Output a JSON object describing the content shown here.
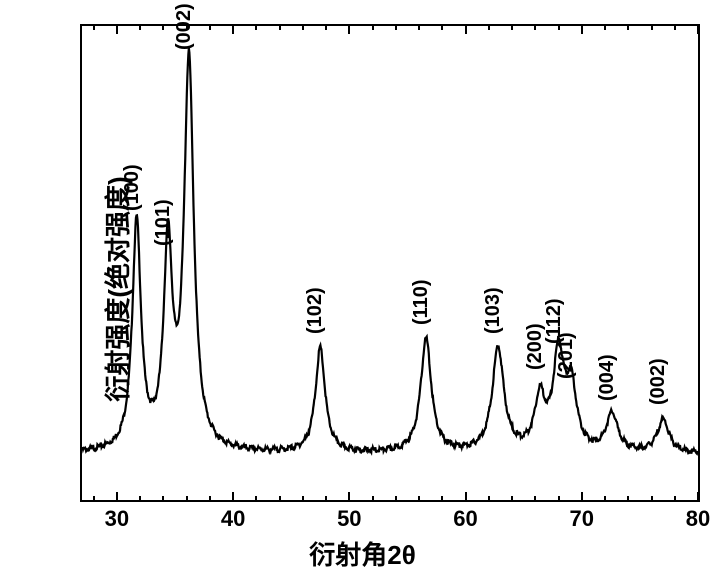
{
  "type": "line",
  "axes": {
    "xlabel": "衍射角2θ",
    "ylabel": "衍射强度(绝对强度)",
    "xlim": [
      27,
      80
    ],
    "ylim": [
      0,
      100
    ],
    "xtick_major": [
      30,
      40,
      50,
      60,
      70,
      80
    ],
    "xtick_minor": [
      28,
      32,
      34,
      36,
      38,
      42,
      44,
      46,
      48,
      52,
      54,
      56,
      58,
      62,
      64,
      66,
      68,
      72,
      74,
      76,
      78
    ],
    "label_fontsize": 26,
    "tick_fontsize": 22,
    "border_color": "#000000",
    "border_width": 2,
    "background_color": "#ffffff"
  },
  "line": {
    "color": "#000000",
    "width": 2.2
  },
  "baseline": 10,
  "peak_label_fontsize": 20,
  "peaks": [
    {
      "label": "(100)",
      "x": 31.7,
      "height": 48,
      "width": 0.45,
      "label_dy": -6
    },
    {
      "label": "(101)",
      "x": 34.4,
      "height": 42,
      "width": 0.45,
      "label_dy": 0
    },
    {
      "label": "(002)",
      "x": 36.2,
      "height": 82,
      "width": 0.5,
      "label_dy": -6
    },
    {
      "label": "(102)",
      "x": 47.5,
      "height": 22,
      "width": 0.5,
      "label_dy": -6
    },
    {
      "label": "(110)",
      "x": 56.6,
      "height": 24,
      "width": 0.55,
      "label_dy": -6
    },
    {
      "label": "(103)",
      "x": 62.8,
      "height": 22,
      "width": 0.6,
      "label_dy": -6
    },
    {
      "label": "(200)",
      "x": 66.4,
      "height": 11,
      "width": 0.55,
      "label_dy": -22
    },
    {
      "label": "(112)",
      "x": 68.0,
      "height": 20,
      "width": 0.55,
      "label_dy": -6
    },
    {
      "label": "(201)",
      "x": 69.1,
      "height": 13,
      "width": 0.55,
      "label_dy": -4
    },
    {
      "label": "(004)",
      "x": 72.6,
      "height": 8,
      "width": 0.6,
      "label_dy": -6
    },
    {
      "label": "(002)",
      "x": 77.0,
      "height": 7,
      "width": 0.6,
      "label_dy": -6
    }
  ],
  "noise": 0.6
}
